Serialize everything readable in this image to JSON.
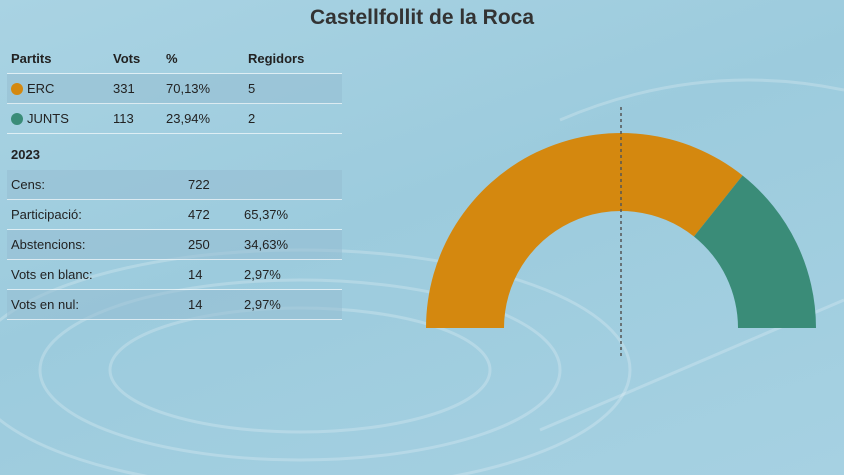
{
  "title": "Castellfollit de la Roca",
  "results_table": {
    "headers": {
      "party": "Partits",
      "votes": "Vots",
      "pct": "%",
      "seats": "Regidors"
    },
    "rows": [
      {
        "party": "ERC",
        "color": "#d4880f",
        "votes": "331",
        "pct": "70,13%",
        "seats": "5"
      },
      {
        "party": "JUNTS",
        "color": "#3a8c78",
        "votes": "113",
        "pct": "23,94%",
        "seats": "2"
      }
    ]
  },
  "summary": {
    "year": "2023",
    "rows": [
      {
        "label": "Cens:",
        "value": "722",
        "pct": ""
      },
      {
        "label": "Participació:",
        "value": "472",
        "pct": "65,37%"
      },
      {
        "label": "Abstencions:",
        "value": "250",
        "pct": "34,63%"
      },
      {
        "label": "Vots en blanc:",
        "value": "14",
        "pct": "2,97%"
      },
      {
        "label": "Vots en nul:",
        "value": "14",
        "pct": "2,97%"
      }
    ]
  },
  "chart_data": {
    "type": "pie",
    "variant": "semicircle-seats",
    "categories": [
      "ERC",
      "JUNTS"
    ],
    "values": [
      5,
      2
    ],
    "colors": [
      "#d4880f",
      "#3a8c78"
    ],
    "total_seats": 7,
    "majority_line": true
  }
}
